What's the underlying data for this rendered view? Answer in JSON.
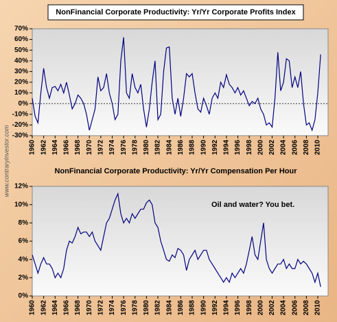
{
  "watermark": "www.contraryinvestor.com",
  "chart_data": [
    {
      "type": "line",
      "title": "NonFinancial Corporate Productivity: Yr/Yr Corporate Profits Index",
      "x": [
        1960,
        1960.5,
        1961,
        1961.5,
        1962,
        1962.5,
        1963,
        1963.5,
        1964,
        1964.5,
        1965,
        1965.5,
        1966,
        1966.5,
        1967,
        1967.5,
        1968,
        1968.5,
        1969,
        1969.5,
        1970,
        1970.5,
        1971,
        1971.5,
        1972,
        1972.5,
        1973,
        1973.5,
        1974,
        1974.5,
        1975,
        1975.5,
        1976,
        1976.5,
        1977,
        1977.5,
        1978,
        1978.5,
        1979,
        1979.5,
        1980,
        1980.5,
        1981,
        1981.5,
        1982,
        1982.5,
        1983,
        1983.5,
        1984,
        1984.5,
        1985,
        1985.5,
        1986,
        1986.5,
        1987,
        1987.5,
        1988,
        1988.5,
        1989,
        1989.5,
        1990,
        1990.5,
        1991,
        1991.5,
        1992,
        1992.5,
        1993,
        1993.5,
        1994,
        1994.5,
        1995,
        1995.5,
        1996,
        1996.5,
        1997,
        1997.5,
        1998,
        1998.5,
        1999,
        1999.5,
        2000,
        2000.5,
        2001,
        2001.5,
        2002,
        2002.5,
        2003,
        2003.5,
        2004,
        2004.5,
        2005,
        2005.5,
        2006,
        2006.5,
        2007,
        2007.5,
        2008,
        2008.5,
        2009,
        2009.5,
        2010,
        2010.5
      ],
      "values": [
        5,
        -12,
        -18,
        10,
        33,
        15,
        5,
        15,
        16,
        12,
        18,
        10,
        20,
        8,
        -5,
        0,
        8,
        5,
        0,
        -10,
        -25,
        -15,
        -5,
        25,
        12,
        15,
        28,
        10,
        0,
        -15,
        -10,
        40,
        62,
        10,
        5,
        28,
        15,
        10,
        18,
        -5,
        -22,
        -5,
        20,
        40,
        -15,
        -10,
        30,
        52,
        53,
        5,
        -10,
        5,
        -12,
        5,
        28,
        25,
        28,
        10,
        -5,
        -8,
        5,
        -2,
        -10,
        5,
        10,
        5,
        20,
        15,
        27,
        18,
        15,
        10,
        15,
        8,
        12,
        5,
        -2,
        2,
        0,
        5,
        -5,
        -10,
        -20,
        -18,
        -22,
        5,
        48,
        12,
        20,
        42,
        40,
        15,
        25,
        15,
        30,
        0,
        -20,
        -18,
        -25,
        -15,
        10,
        46
      ],
      "color": "#000080",
      "xlim": [
        1960,
        2011.8
      ],
      "xticks": [
        1960,
        1962,
        1964,
        1966,
        1968,
        1970,
        1972,
        1974,
        1976,
        1978,
        1980,
        1982,
        1984,
        1986,
        1988,
        1990,
        1992,
        1994,
        1996,
        1998,
        2000,
        2002,
        2004,
        2006,
        2008,
        2010
      ],
      "ylim": [
        -30,
        70
      ],
      "yticks": [
        {
          "value": -30,
          "label": "-30%"
        },
        {
          "value": -20,
          "label": "-20%"
        },
        {
          "value": -10,
          "label": "-10%"
        },
        {
          "value": 0,
          "label": "0%"
        },
        {
          "value": 10,
          "label": "10%"
        },
        {
          "value": 20,
          "label": "20%"
        },
        {
          "value": 30,
          "label": "30%"
        },
        {
          "value": 40,
          "label": "40%"
        },
        {
          "value": 50,
          "label": "50%"
        },
        {
          "value": 60,
          "label": "60%"
        },
        {
          "value": 70,
          "label": "70%"
        }
      ],
      "zero_line": true
    },
    {
      "type": "line",
      "title": "NonFinancial Corporate Productivity: Yr/Yr Compensation Per Hour",
      "annotation": "Oil and water?  You bet.",
      "x": [
        1960,
        1960.5,
        1961,
        1961.5,
        1962,
        1962.5,
        1963,
        1963.5,
        1964,
        1964.5,
        1965,
        1965.5,
        1966,
        1966.5,
        1967,
        1967.5,
        1968,
        1968.5,
        1969,
        1969.5,
        1970,
        1970.5,
        1971,
        1971.5,
        1972,
        1972.5,
        1973,
        1973.5,
        1974,
        1974.5,
        1975,
        1975.5,
        1976,
        1976.5,
        1977,
        1977.5,
        1978,
        1978.5,
        1979,
        1979.5,
        1980,
        1980.5,
        1981,
        1981.5,
        1982,
        1982.5,
        1983,
        1983.5,
        1984,
        1984.5,
        1985,
        1985.5,
        1986,
        1986.5,
        1987,
        1987.5,
        1988,
        1988.5,
        1989,
        1989.5,
        1990,
        1990.5,
        1991,
        1991.5,
        1992,
        1992.5,
        1993,
        1993.5,
        1994,
        1994.5,
        1995,
        1995.5,
        1996,
        1996.5,
        1997,
        1997.5,
        1998,
        1998.5,
        1999,
        1999.5,
        2000,
        2000.5,
        2001,
        2001.5,
        2002,
        2002.5,
        2003,
        2003.5,
        2004,
        2004.5,
        2005,
        2005.5,
        2006,
        2006.5,
        2007,
        2007.5,
        2008,
        2008.5,
        2009,
        2009.5,
        2010,
        2010.5
      ],
      "values": [
        4.5,
        3.5,
        2.5,
        3.5,
        4.2,
        3.5,
        3.5,
        3.0,
        2.0,
        2.5,
        2.0,
        3.0,
        5.0,
        6.0,
        5.8,
        6.5,
        7.5,
        6.8,
        7.0,
        7.0,
        6.5,
        7.0,
        6.0,
        5.5,
        5.0,
        6.5,
        8.0,
        8.5,
        9.5,
        10.5,
        11.2,
        9.0,
        8.0,
        8.5,
        8.0,
        9.0,
        8.5,
        9.0,
        9.5,
        9.5,
        10.2,
        10.5,
        10.0,
        8.0,
        7.5,
        6.0,
        5.0,
        4.0,
        3.8,
        4.5,
        4.2,
        5.2,
        5.0,
        4.5,
        2.8,
        4.0,
        4.5,
        5.0,
        4.0,
        4.5,
        5.0,
        5.0,
        4.0,
        3.5,
        3.0,
        2.5,
        2.0,
        1.5,
        2.0,
        1.5,
        2.5,
        2.0,
        2.5,
        3.0,
        2.5,
        3.5,
        5.0,
        6.5,
        4.5,
        4.0,
        6.0,
        8.0,
        4.0,
        3.0,
        2.5,
        3.0,
        3.5,
        3.5,
        4.0,
        3.0,
        3.5,
        3.0,
        3.0,
        4.0,
        3.5,
        3.8,
        3.5,
        3.0,
        2.5,
        1.5,
        2.5,
        1.0
      ],
      "color": "#000080",
      "xlim": [
        1960,
        2011.8
      ],
      "xticks": [
        1960,
        1962,
        1964,
        1966,
        1968,
        1970,
        1972,
        1974,
        1976,
        1978,
        1980,
        1982,
        1984,
        1986,
        1988,
        1990,
        1992,
        1994,
        1996,
        1998,
        2000,
        2002,
        2004,
        2006,
        2008,
        2010
      ],
      "ylim": [
        0,
        12
      ],
      "yticks": [
        {
          "value": 0,
          "label": "0%"
        },
        {
          "value": 2,
          "label": "2%"
        },
        {
          "value": 4,
          "label": "4%"
        },
        {
          "value": 6,
          "label": "6%"
        },
        {
          "value": 8,
          "label": "8%"
        },
        {
          "value": 10,
          "label": "10%"
        },
        {
          "value": 12,
          "label": "12%"
        }
      ]
    }
  ]
}
